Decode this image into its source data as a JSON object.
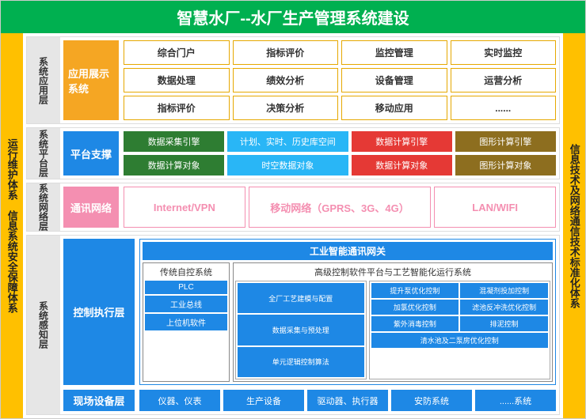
{
  "title": "智慧水厂--水厂生产管理系统建设",
  "left_sidebar": "运行维护体系　信息系统安全保障体系",
  "right_sidebar": "信息技术及网络通信技术标准化体系",
  "colors": {
    "title_bg": "#00b050",
    "sidebar_bg": "#ffc000",
    "blue": "#1e88e5",
    "orange": "#f5a623",
    "pink": "#f48fb1",
    "green2": "#2e7d32",
    "cyan": "#29b6f6",
    "red": "#e53935",
    "olive": "#8d6e1f"
  },
  "layer1": {
    "label": "系统应用层",
    "sublabel": "应用展示系统",
    "items": [
      "综合门户",
      "指标评价",
      "监控管理",
      "实时监控",
      "数据处理",
      "绩效分析",
      "设备管理",
      "运营分析",
      "指标评价",
      "决策分析",
      "移动应用",
      "......"
    ]
  },
  "layer2": {
    "label": "系统平台层",
    "sublabel": "平台支撑",
    "rows": [
      [
        {
          "text": "数据采集引擎",
          "color": "#2e7d32"
        },
        {
          "text": "计划、实时、历史库空间",
          "color": "#29b6f6"
        },
        {
          "text": "数据计算引擎",
          "color": "#e53935"
        },
        {
          "text": "图形计算引擎",
          "color": "#8d6e1f"
        }
      ],
      [
        {
          "text": "数据计算对象",
          "color": "#2e7d32"
        },
        {
          "text": "时空数据对象",
          "color": "#29b6f6"
        },
        {
          "text": "数据计算对象",
          "color": "#e53935"
        },
        {
          "text": "图形计算对象",
          "color": "#8d6e1f"
        }
      ]
    ]
  },
  "layer3": {
    "label": "系统网络层",
    "sublabel": "通讯网络",
    "items": [
      "Internet/VPN",
      "移动网络（GPRS、3G、4G）",
      "LAN/WIFI"
    ]
  },
  "layer4": {
    "label": "系统感知层",
    "sublabel_control": "控制执行层",
    "gateway": "工业智能通讯网关",
    "panel_trad": {
      "title": "传统自控系统",
      "items": [
        "PLC",
        "工业总线",
        "上位机软件"
      ]
    },
    "panel_adv": {
      "title": "高级控制软件平台与工艺智能化运行系统",
      "col1": [
        "全厂工艺建模与配置",
        "数据采集与预处理",
        "单元逻辑控制算法"
      ],
      "col2": [
        "提升泵优化控制",
        "混凝剂投加控制",
        "加氯优化控制",
        "滤池反冲洗优化控制",
        "紫外消毒控制",
        "排泥控制",
        "清水池及二泵房优化控制"
      ]
    },
    "field": {
      "sublabel": "现场设备层",
      "items": [
        "仪器、仪表",
        "生产设备",
        "驱动器、执行器",
        "安防系统",
        "......系统"
      ]
    }
  }
}
